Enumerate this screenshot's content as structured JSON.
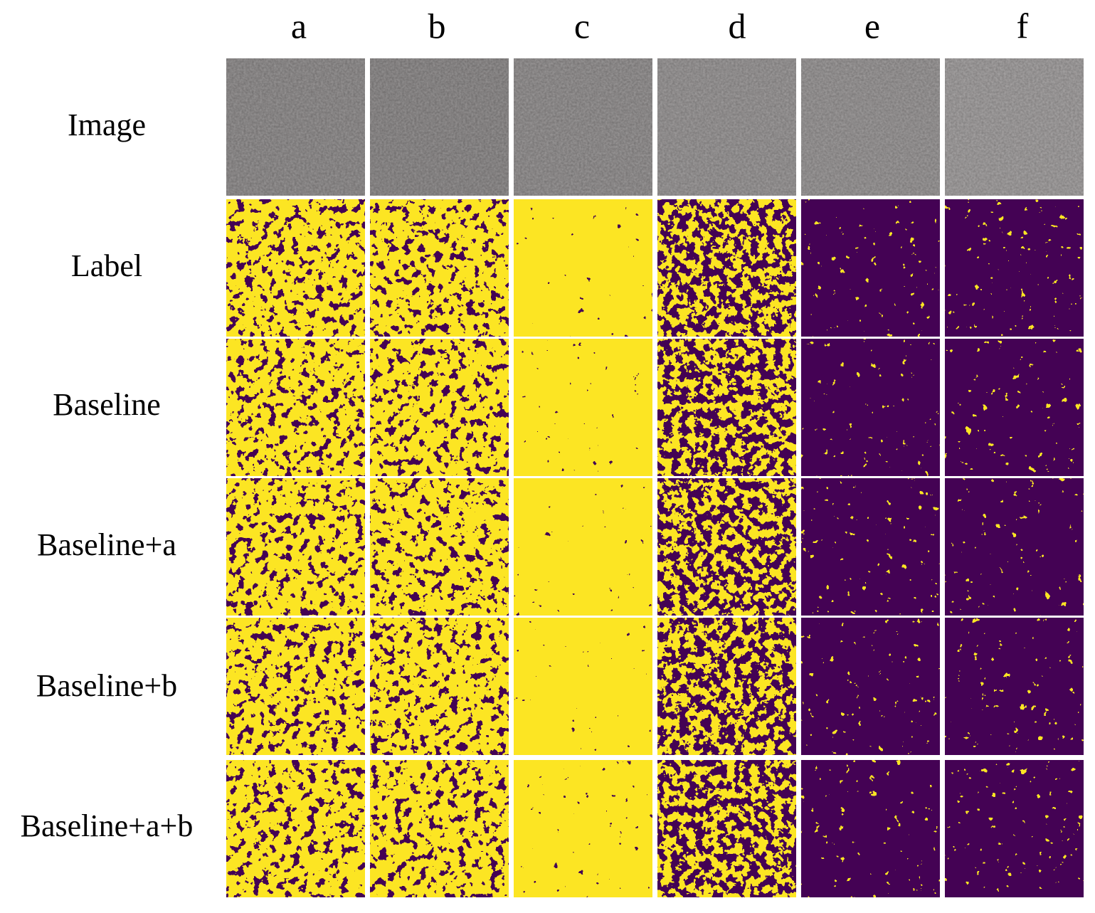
{
  "columns": [
    "a",
    "b",
    "c",
    "d",
    "e",
    "f"
  ],
  "rows": [
    "Image",
    "Label",
    "Baseline",
    "Baseline+a",
    "Baseline+b",
    "Baseline+a+b"
  ]
}
